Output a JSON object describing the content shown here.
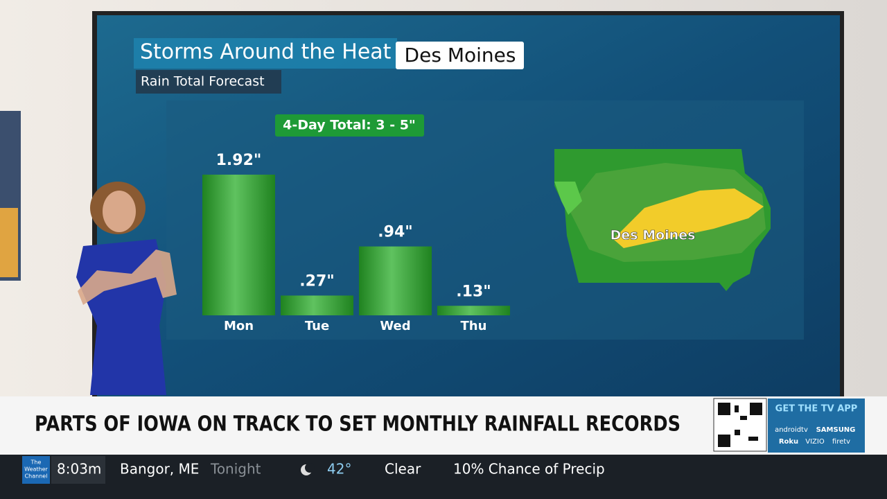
{
  "chart_data": {
    "type": "bar",
    "title": "Storms Around the Heat",
    "location": "Des Moines",
    "subtitle": "Rain Total Forecast",
    "annotation": "4-Day Total:  3 - 5\"",
    "categories": [
      "Mon",
      "Tue",
      "Wed",
      "Thu"
    ],
    "values": [
      1.92,
      0.27,
      0.94,
      0.13
    ],
    "value_labels": [
      "1.92\"",
      ".27\"",
      ".94\"",
      ".13\""
    ],
    "color": "#2aae2a"
  },
  "map": {
    "label": "Des Moines"
  },
  "headline": "PARTS OF IOWA ON TRACK TO SET MONTHLY RAINFALL RECORDS",
  "app_promo": {
    "title": "GET THE TV APP",
    "brands": [
      "androidtv",
      "SAMSUNG",
      "Roku",
      "VIZIO",
      "firetv"
    ]
  },
  "ticker": {
    "logo": [
      "The",
      "Weather",
      "Channel"
    ],
    "time": "8:03m",
    "city": "Bangor, ME",
    "period": "Tonight",
    "temperature": "42°",
    "condition": "Clear",
    "precip": "10% Chance of Precip"
  }
}
